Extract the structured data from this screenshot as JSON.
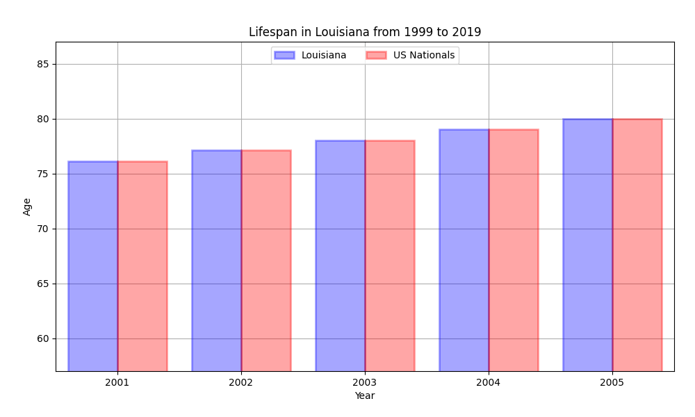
{
  "chart_data": {
    "type": "bar",
    "title": "Lifespan in Louisiana from 1999 to 2019",
    "x_label": "Year",
    "y_label": "Age",
    "categories": [
      "2001",
      "2002",
      "2003",
      "2004",
      "2005"
    ],
    "series": [
      {
        "name": "Louisiana",
        "color": "#0000ff",
        "values": [
          76.1,
          77.1,
          78.0,
          79.0,
          80.0
        ]
      },
      {
        "name": "US Nationals",
        "color": "#ff0000",
        "values": [
          76.1,
          77.1,
          78.0,
          79.0,
          80.0
        ]
      }
    ],
    "ylim": [
      57,
      87
    ],
    "yticks": [
      60,
      65,
      70,
      75,
      80,
      85
    ],
    "grid": true,
    "legend": "upper center"
  }
}
